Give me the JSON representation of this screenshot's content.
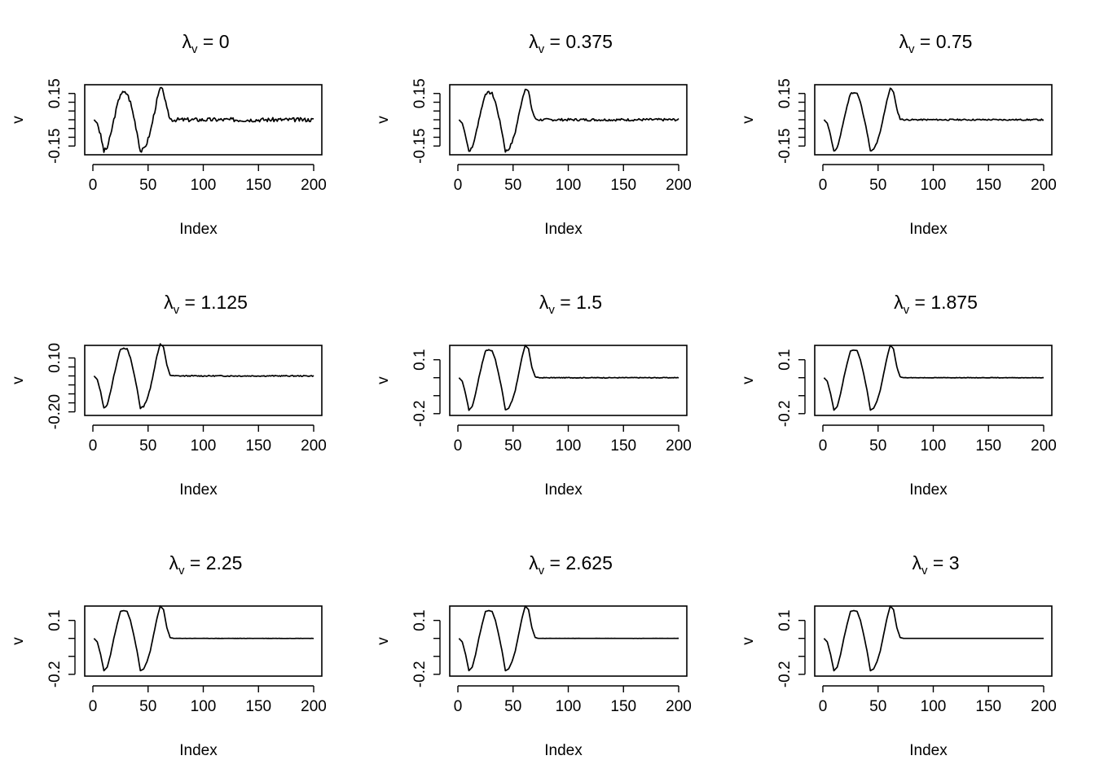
{
  "figure": {
    "rows": 3,
    "cols": 3,
    "line_color": "#000000",
    "background": "#ffffff"
  },
  "chart_data": [
    {
      "type": "line",
      "title": "λv = 0",
      "title_symbol": "λ",
      "title_subscript": "v",
      "title_value": "0",
      "xlabel": "Index",
      "ylabel": "v",
      "xlim": [
        0,
        200
      ],
      "ylim": [
        -0.2,
        0.2
      ],
      "xticks": [
        "0",
        "50",
        "100",
        "150",
        "200"
      ],
      "yticks": [
        -0.15,
        -0.1,
        -0.05,
        0,
        0.05,
        0.1,
        0.15
      ],
      "yticklabels": {
        "-0.15": "-0.15",
        "0.15": "0.15"
      },
      "noise": 0.012,
      "seed": 3
    },
    {
      "type": "line",
      "title": "λv = 0.375",
      "title_symbol": "λ",
      "title_subscript": "v",
      "title_value": "0.375",
      "xlabel": "Index",
      "ylabel": "v",
      "xlim": [
        0,
        200
      ],
      "ylim": [
        -0.2,
        0.2
      ],
      "xticks": [
        "0",
        "50",
        "100",
        "150",
        "200"
      ],
      "yticks": [
        -0.15,
        -0.1,
        -0.05,
        0,
        0.05,
        0.1,
        0.15
      ],
      "yticklabels": {
        "-0.15": "-0.15",
        "0.15": "0.15"
      },
      "noise": 0.007,
      "seed": 7
    },
    {
      "type": "line",
      "title": "λv = 0.75",
      "title_symbol": "λ",
      "title_subscript": "v",
      "title_value": "0.75",
      "xlabel": "Index",
      "ylabel": "v",
      "xlim": [
        0,
        200
      ],
      "ylim": [
        -0.2,
        0.2
      ],
      "xticks": [
        "0",
        "50",
        "100",
        "150",
        "200"
      ],
      "yticks": [
        -0.15,
        -0.1,
        -0.05,
        0,
        0.05,
        0.1,
        0.15
      ],
      "yticklabels": {
        "-0.15": "-0.15",
        "0.15": "0.15"
      },
      "noise": 0.004,
      "seed": 11
    },
    {
      "type": "line",
      "title": "λv = 1.125",
      "title_symbol": "λ",
      "title_subscript": "v",
      "title_value": "1.125",
      "xlabel": "Index",
      "ylabel": "v",
      "xlim": [
        0,
        200
      ],
      "ylim": [
        -0.22,
        0.17
      ],
      "xticks": [
        "0",
        "50",
        "100",
        "150",
        "200"
      ],
      "yticks": [
        -0.2,
        -0.15,
        -0.1,
        -0.05,
        0,
        0.05,
        0.1
      ],
      "yticklabels": {
        "-0.2": "-0.20",
        "0.1": "0.10"
      },
      "noise": 0.003,
      "seed": 13
    },
    {
      "type": "line",
      "title": "λv = 1.5",
      "title_symbol": "λ",
      "title_subscript": "v",
      "title_value": "1.5",
      "xlabel": "Index",
      "ylabel": "v",
      "xlim": [
        0,
        200
      ],
      "ylim": [
        -0.21,
        0.18
      ],
      "xticks": [
        "0",
        "50",
        "100",
        "150",
        "200"
      ],
      "yticks": [
        -0.2,
        -0.1,
        0,
        0.1
      ],
      "yticklabels": {
        "-0.2": "-0.2",
        "0.1": "0.1"
      },
      "noise": 0.002,
      "seed": 17
    },
    {
      "type": "line",
      "title": "λv = 1.875",
      "title_symbol": "λ",
      "title_subscript": "v",
      "title_value": "1.875",
      "xlabel": "Index",
      "ylabel": "v",
      "xlim": [
        0,
        200
      ],
      "ylim": [
        -0.21,
        0.18
      ],
      "xticks": [
        "0",
        "50",
        "100",
        "150",
        "200"
      ],
      "yticks": [
        -0.2,
        -0.1,
        0,
        0.1
      ],
      "yticklabels": {
        "-0.2": "-0.2",
        "0.1": "0.1"
      },
      "noise": 0.0012,
      "seed": 19
    },
    {
      "type": "line",
      "title": "λv = 2.25",
      "title_symbol": "λ",
      "title_subscript": "v",
      "title_value": "2.25",
      "xlabel": "Index",
      "ylabel": "v",
      "xlim": [
        0,
        200
      ],
      "ylim": [
        -0.21,
        0.18
      ],
      "xticks": [
        "0",
        "50",
        "100",
        "150",
        "200"
      ],
      "yticks": [
        -0.2,
        -0.1,
        0,
        0.1
      ],
      "yticklabels": {
        "-0.2": "-0.2",
        "0.1": "0.1"
      },
      "noise": 0.0006,
      "seed": 23
    },
    {
      "type": "line",
      "title": "λv = 2.625",
      "title_symbol": "λ",
      "title_subscript": "v",
      "title_value": "2.625",
      "xlabel": "Index",
      "ylabel": "v",
      "xlim": [
        0,
        200
      ],
      "ylim": [
        -0.21,
        0.18
      ],
      "xticks": [
        "0",
        "50",
        "100",
        "150",
        "200"
      ],
      "yticks": [
        -0.2,
        -0.1,
        0,
        0.1
      ],
      "yticklabels": {
        "-0.2": "-0.2",
        "0.1": "0.1"
      },
      "noise": 0.0003,
      "seed": 29
    },
    {
      "type": "line",
      "title": "λv = 3",
      "title_symbol": "λ",
      "title_subscript": "v",
      "title_value": "3",
      "xlabel": "Index",
      "ylabel": "v",
      "xlim": [
        0,
        200
      ],
      "ylim": [
        -0.21,
        0.18
      ],
      "xticks": [
        "0",
        "50",
        "100",
        "150",
        "200"
      ],
      "yticks": [
        -0.2,
        -0.1,
        0,
        0.1
      ],
      "yticklabels": {
        "-0.2": "-0.2",
        "0.1": "0.1"
      },
      "noise": 0.0,
      "seed": 31
    }
  ],
  "signal_shape": {
    "x_start": 1,
    "x_end": 200,
    "keypoints": [
      [
        1,
        0
      ],
      [
        4,
        -0.02
      ],
      [
        7,
        -0.09
      ],
      [
        10,
        -0.18
      ],
      [
        13,
        -0.16
      ],
      [
        16,
        -0.09
      ],
      [
        19,
        0.0
      ],
      [
        22,
        0.08
      ],
      [
        25,
        0.15
      ],
      [
        28,
        0.155
      ],
      [
        31,
        0.15
      ],
      [
        34,
        0.1
      ],
      [
        37,
        0.02
      ],
      [
        40,
        -0.07
      ],
      [
        43,
        -0.18
      ],
      [
        46,
        -0.17
      ],
      [
        49,
        -0.13
      ],
      [
        52,
        -0.07
      ],
      [
        55,
        0.02
      ],
      [
        58,
        0.11
      ],
      [
        61,
        0.18
      ],
      [
        64,
        0.16
      ],
      [
        67,
        0.06
      ],
      [
        70,
        0.005
      ],
      [
        73,
        0
      ],
      [
        200,
        0
      ]
    ]
  }
}
